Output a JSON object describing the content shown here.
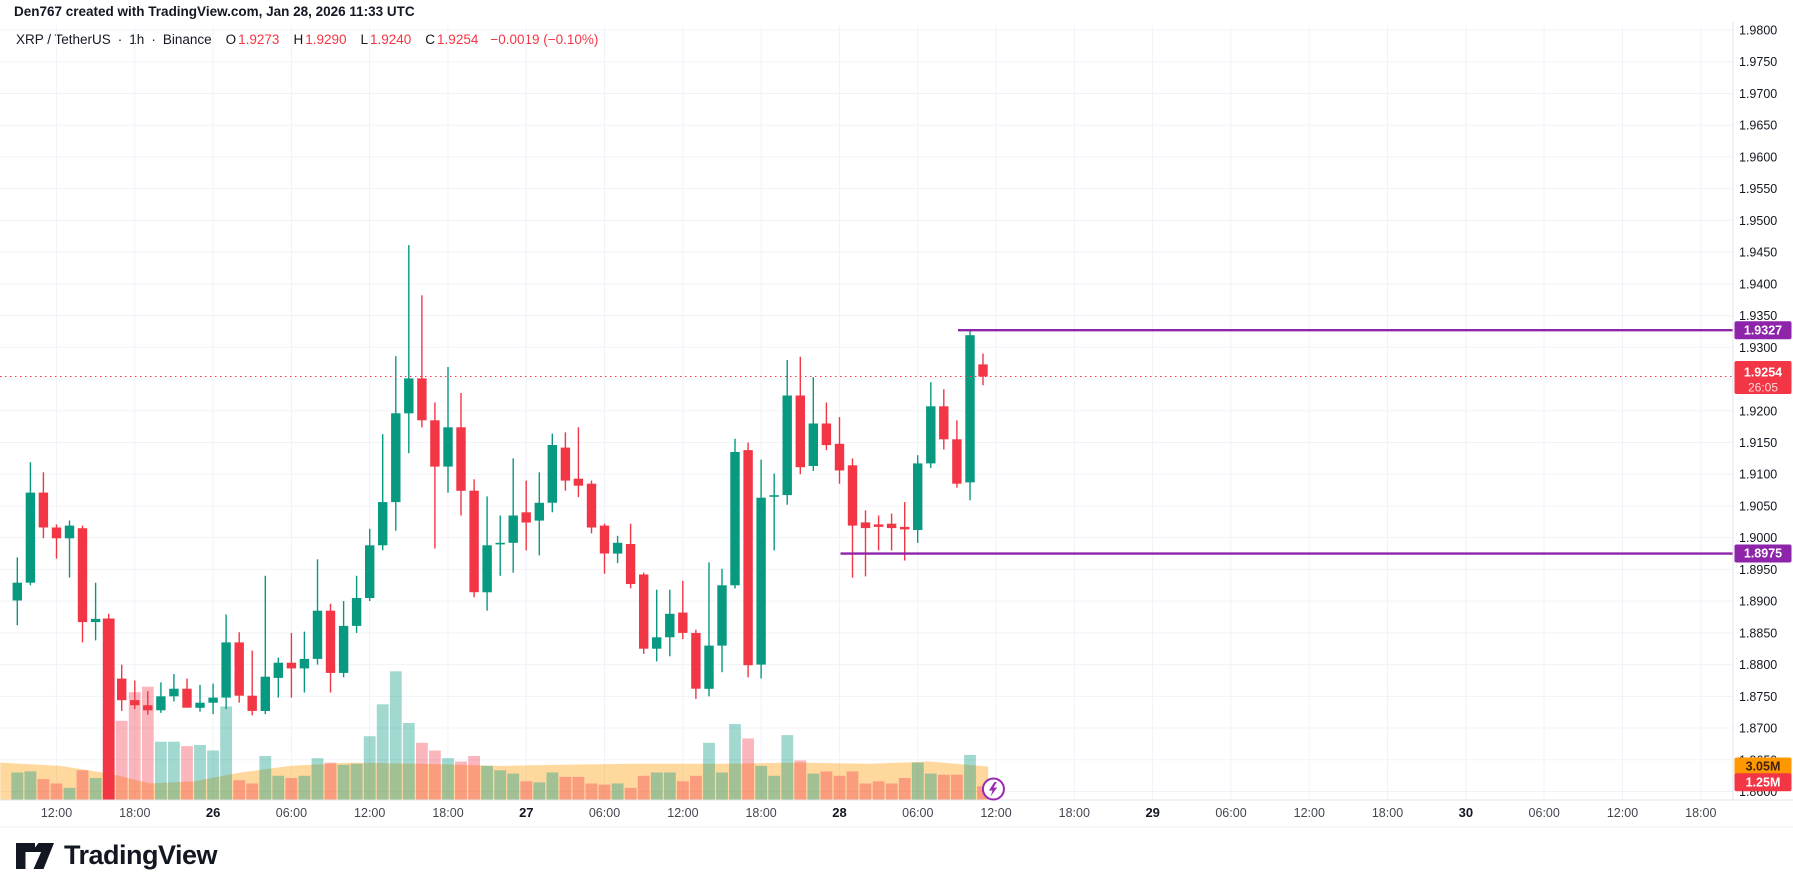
{
  "attribution": "Den767 created with TradingView.com, Jan 28, 2026 11:33 UTC",
  "header": {
    "symbol": "XRP / TetherUS",
    "separator": "·",
    "interval": "1h",
    "exchange": "Binance",
    "ohlc": {
      "o_label": "O",
      "o": "1.9273",
      "h_label": "H",
      "h": "1.9290",
      "l_label": "L",
      "l": "1.9240",
      "c_label": "C",
      "c": "1.9254",
      "change": "−0.0019 (−0.10%)"
    }
  },
  "colors": {
    "up": "#089981",
    "down": "#f23645",
    "grid": "#f0f3fa",
    "axis_border": "#e0e3eb",
    "text": "#131722",
    "text_muted": "#434651",
    "level": "#8e24aa",
    "last_price": "#f23645",
    "vol_up": "rgba(8,153,129,0.38)",
    "vol_down": "rgba(242,54,69,0.36)",
    "vol_spike": "#f23645",
    "vol_ma_fill": "rgba(255,152,0,0.38)",
    "vol_ma_label_bg": "#ff9800",
    "vol_ma_label_text": "#42210b",
    "countdown_text": "#ffd6da"
  },
  "chart_data": {
    "type": "candlestick",
    "title": "XRP / TetherUS · 1h · Binance",
    "interval": "1h",
    "price_axis": {
      "min": 1.86,
      "max": 1.98,
      "tick_step": 0.005,
      "tick_labels": [
        "1.9800",
        "1.9750",
        "1.9700",
        "1.9650",
        "1.9600",
        "1.9550",
        "1.9500",
        "1.9450",
        "1.9400",
        "1.9350",
        "1.9300",
        "1.9250",
        "1.9200",
        "1.9150",
        "1.9100",
        "1.9050",
        "1.9000",
        "1.8950",
        "1.8900",
        "1.8850",
        "1.8800",
        "1.8750",
        "1.8700",
        "1.8650",
        "1.8600"
      ]
    },
    "time_axis": {
      "labels": [
        {
          "text": "12:00",
          "i": 3
        },
        {
          "text": "18:00",
          "i": 9
        },
        {
          "text": "26",
          "i": 15,
          "bold": true
        },
        {
          "text": "06:00",
          "i": 21
        },
        {
          "text": "12:00",
          "i": 27
        },
        {
          "text": "18:00",
          "i": 33
        },
        {
          "text": "27",
          "i": 39,
          "bold": true
        },
        {
          "text": "06:00",
          "i": 45
        },
        {
          "text": "12:00",
          "i": 51
        },
        {
          "text": "18:00",
          "i": 57
        },
        {
          "text": "28",
          "i": 63,
          "bold": true
        },
        {
          "text": "06:00",
          "i": 69
        },
        {
          "text": "12:00",
          "i": 75
        },
        {
          "text": "18:00",
          "i": 81
        },
        {
          "text": "29",
          "i": 87,
          "bold": true
        },
        {
          "text": "06:00",
          "i": 93
        },
        {
          "text": "12:00",
          "i": 99
        },
        {
          "text": "18:00",
          "i": 105
        },
        {
          "text": "30",
          "i": 111,
          "bold": true
        },
        {
          "text": "06:00",
          "i": 117
        },
        {
          "text": "12:00",
          "i": 123
        },
        {
          "text": "18:00",
          "i": 129
        }
      ]
    },
    "candles": {
      "columns": [
        "time",
        "open",
        "high",
        "low",
        "close",
        "volume_m"
      ],
      "rows": [
        [
          "25 09:00",
          1.8901,
          1.8969,
          1.8862,
          1.8929,
          2.5
        ],
        [
          "25 10:00",
          1.8929,
          1.9119,
          1.8925,
          1.9071,
          2.6
        ],
        [
          "25 11:00",
          1.9071,
          1.9103,
          1.8999,
          1.9016,
          1.9
        ],
        [
          "25 12:00",
          1.9016,
          1.9021,
          1.8967,
          1.8999,
          1.5
        ],
        [
          "25 13:00",
          1.8999,
          1.9027,
          1.8937,
          1.9019,
          1.1
        ],
        [
          "25 14:00",
          1.9015,
          1.9019,
          1.8835,
          1.8867,
          2.7
        ],
        [
          "25 15:00",
          1.8867,
          1.8929,
          1.8838,
          1.8872,
          2.0
        ],
        [
          "25 16:00",
          1.8872,
          1.888,
          1.8755,
          1.8778,
          16.5
        ],
        [
          "25 17:00",
          1.8778,
          1.88,
          1.8727,
          1.8744,
          7.2
        ],
        [
          "25 18:00",
          1.8744,
          1.8775,
          1.873,
          1.8736,
          9.8
        ],
        [
          "25 19:00",
          1.8736,
          1.8758,
          1.8721,
          1.8728,
          10.3
        ],
        [
          "25 20:00",
          1.8728,
          1.8772,
          1.8724,
          1.875,
          5.3
        ],
        [
          "25 21:00",
          1.875,
          1.8785,
          1.8742,
          1.8762,
          5.3
        ],
        [
          "25 22:00",
          1.8762,
          1.8778,
          1.8738,
          1.8732,
          4.9
        ],
        [
          "25 23:00",
          1.8732,
          1.8768,
          1.8726,
          1.874,
          5.0
        ],
        [
          "26 00:00",
          1.874,
          1.877,
          1.8722,
          1.8748,
          4.5
        ],
        [
          "26 01:00",
          1.8748,
          1.8879,
          1.873,
          1.8835,
          8.5
        ],
        [
          "26 02:00",
          1.8835,
          1.8851,
          1.874,
          1.8751,
          1.8
        ],
        [
          "26 03:00",
          1.8751,
          1.8822,
          1.872,
          1.8727,
          1.5
        ],
        [
          "26 04:00",
          1.8727,
          1.894,
          1.8722,
          1.8781,
          4.0
        ],
        [
          "26 05:00",
          1.8779,
          1.8811,
          1.8748,
          1.8803,
          2.2
        ],
        [
          "26 06:00",
          1.8803,
          1.885,
          1.8748,
          1.8794,
          2.0
        ],
        [
          "26 07:00",
          1.8794,
          1.8852,
          1.8756,
          1.8809,
          2.2
        ],
        [
          "26 08:00",
          1.8809,
          1.8966,
          1.88,
          1.8885,
          3.8
        ],
        [
          "26 09:00",
          1.8885,
          1.8896,
          1.8756,
          1.8787,
          3.4
        ],
        [
          "26 10:00",
          1.8787,
          1.89,
          1.878,
          1.8861,
          3.2
        ],
        [
          "26 11:00",
          1.8861,
          1.894,
          1.885,
          1.8905,
          3.3
        ],
        [
          "26 12:00",
          1.8905,
          1.9014,
          1.89,
          1.8988,
          5.8
        ],
        [
          "26 13:00",
          1.8988,
          1.9163,
          1.898,
          1.9056,
          8.7
        ],
        [
          "26 14:00",
          1.9056,
          1.9286,
          1.9011,
          1.9196,
          11.7
        ],
        [
          "26 15:00",
          1.9196,
          1.9461,
          1.9133,
          1.9251,
          7.0
        ],
        [
          "26 16:00",
          1.9251,
          1.9382,
          1.9174,
          1.9185,
          5.2
        ],
        [
          "26 17:00",
          1.9185,
          1.9213,
          1.8983,
          1.9112,
          4.5
        ],
        [
          "26 18:00",
          1.9112,
          1.9269,
          1.9071,
          1.9174,
          3.8
        ],
        [
          "26 19:00",
          1.9174,
          1.9228,
          1.9035,
          1.9074,
          3.5
        ],
        [
          "26 20:00",
          1.9074,
          1.9092,
          1.8906,
          1.8914,
          4.0
        ],
        [
          "26 21:00",
          1.8914,
          1.9065,
          1.8885,
          1.8988,
          3.1
        ],
        [
          "26 22:00",
          1.899,
          1.9035,
          1.894,
          1.8992,
          2.7
        ],
        [
          "26 23:00",
          1.8992,
          1.9125,
          1.8945,
          1.9035,
          2.4
        ],
        [
          "27 00:00",
          1.904,
          1.909,
          1.898,
          1.9024,
          1.7
        ],
        [
          "27 01:00",
          1.9027,
          1.9103,
          1.8972,
          1.9055,
          1.6
        ],
        [
          "27 02:00",
          1.9055,
          1.9164,
          1.904,
          1.9146,
          2.5
        ],
        [
          "27 03:00",
          1.9142,
          1.9166,
          1.9074,
          1.909,
          2.1
        ],
        [
          "27 04:00",
          1.9093,
          1.9174,
          1.9064,
          1.9082,
          2.1
        ],
        [
          "27 05:00",
          1.9085,
          1.909,
          1.9007,
          1.9016,
          1.5
        ],
        [
          "27 06:00",
          1.9019,
          1.9022,
          1.8943,
          1.8975,
          1.4
        ],
        [
          "27 07:00",
          1.8975,
          1.9003,
          1.896,
          1.8992,
          1.5
        ],
        [
          "27 08:00",
          1.899,
          1.9022,
          1.892,
          1.8927,
          1.1
        ],
        [
          "27 09:00",
          1.8942,
          1.8945,
          1.8817,
          1.8825,
          2.2
        ],
        [
          "27 10:00",
          1.8825,
          1.8918,
          1.8805,
          1.8843,
          2.5
        ],
        [
          "27 11:00",
          1.8843,
          1.8918,
          1.8813,
          1.888,
          2.5
        ],
        [
          "27 12:00",
          1.8882,
          1.8932,
          1.884,
          1.885,
          1.7
        ],
        [
          "27 13:00",
          1.885,
          1.8855,
          1.8746,
          1.8762,
          2.2
        ],
        [
          "27 14:00",
          1.8762,
          1.8961,
          1.875,
          1.883,
          5.2
        ],
        [
          "27 15:00",
          1.883,
          1.8951,
          1.8788,
          1.8925,
          2.5
        ],
        [
          "27 16:00",
          1.8925,
          1.9156,
          1.892,
          1.9135,
          6.9
        ],
        [
          "27 17:00",
          1.9138,
          1.915,
          1.878,
          1.8799,
          5.6
        ],
        [
          "27 18:00",
          1.88,
          1.9123,
          1.8778,
          1.9063,
          3.1
        ],
        [
          "27 19:00",
          1.9065,
          1.9101,
          1.898,
          1.9067,
          2.2
        ],
        [
          "27 20:00",
          1.9067,
          1.928,
          1.9052,
          1.9224,
          5.9
        ],
        [
          "27 21:00",
          1.9224,
          1.9285,
          1.91,
          1.9111,
          3.6
        ],
        [
          "27 22:00",
          1.9113,
          1.9253,
          1.9105,
          1.918,
          2.4
        ],
        [
          "27 23:00",
          1.918,
          1.9213,
          1.9138,
          1.9146,
          2.6
        ],
        [
          "28 00:00",
          1.9148,
          1.919,
          1.9085,
          1.9106,
          2.2
        ],
        [
          "28 01:00",
          1.9114,
          1.9125,
          1.8937,
          1.9019,
          2.6
        ],
        [
          "28 02:00",
          1.9024,
          1.9043,
          1.8939,
          1.9015,
          1.5
        ],
        [
          "28 03:00",
          1.9021,
          1.9035,
          1.898,
          1.9017,
          1.7
        ],
        [
          "28 04:00",
          1.9022,
          1.9038,
          1.898,
          1.9015,
          1.5
        ],
        [
          "28 05:00",
          1.9017,
          1.9056,
          1.8964,
          1.9013,
          2.0
        ],
        [
          "28 06:00",
          1.9012,
          1.913,
          1.8992,
          1.9117,
          3.4
        ],
        [
          "28 07:00",
          1.9117,
          1.9245,
          1.911,
          1.9207,
          2.4
        ],
        [
          "28 08:00",
          1.9207,
          1.9234,
          1.9139,
          1.9155,
          2.3
        ],
        [
          "28 09:00",
          1.9155,
          1.9185,
          1.9079,
          1.9085,
          2.3
        ],
        [
          "28 10:00",
          1.9087,
          1.9327,
          1.9059,
          1.9319,
          4.1
        ],
        [
          "28 11:00",
          1.9273,
          1.929,
          1.924,
          1.9254,
          1.25
        ]
      ]
    },
    "volume_spike_index": 7,
    "volume_ma_points": [
      [
        -1.3,
        3.4
      ],
      [
        3.3,
        3.1
      ],
      [
        7.1,
        2.4
      ],
      [
        10.2,
        1.5
      ],
      [
        13.6,
        1.7
      ],
      [
        17.1,
        2.5
      ],
      [
        20.9,
        3.1
      ],
      [
        25.5,
        3.4
      ],
      [
        30.9,
        3.3
      ],
      [
        37.0,
        3.1
      ],
      [
        41.6,
        3.2
      ],
      [
        47.7,
        3.3
      ],
      [
        53.9,
        3.3
      ],
      [
        60.0,
        3.4
      ],
      [
        65.3,
        3.3
      ],
      [
        69.9,
        3.5
      ],
      [
        74.4,
        3.05
      ]
    ],
    "levels": [
      {
        "price": 1.9327,
        "label": "1.9327",
        "from_index": 73
      },
      {
        "price": 1.8975,
        "label": "1.8975",
        "from_index": 64
      }
    ],
    "last_price": {
      "value": 1.9254,
      "label": "1.9254",
      "countdown": "26:05"
    },
    "volume_axis_labels": [
      {
        "text": "3.05M",
        "value_m": 3.05,
        "kind": "ma"
      },
      {
        "text": "1.25M",
        "value_m": 1.25,
        "kind": "current"
      }
    ]
  },
  "footer": {
    "logo_text": "TradingView"
  }
}
